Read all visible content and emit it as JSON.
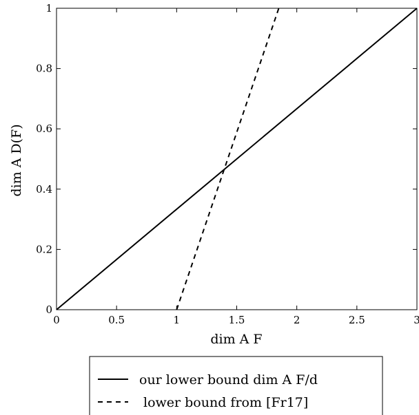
{
  "chart_data": {
    "type": "line",
    "title": "",
    "xlabel": "dim A F",
    "ylabel": "dim A D(F)",
    "xlim": [
      0,
      3
    ],
    "ylim": [
      0,
      1
    ],
    "x_ticks": [
      "0",
      "0.5",
      "1",
      "1.5",
      "2",
      "2.5",
      "3"
    ],
    "y_ticks": [
      "0",
      "0.2",
      "0.4",
      "0.6",
      "0.8",
      "1"
    ],
    "grid": false,
    "legend_position": "below",
    "series": [
      {
        "name": "our lower bound dim A F/d",
        "style": "solid",
        "color": "#000000",
        "x": [
          0,
          3
        ],
        "y": [
          0,
          1
        ]
      },
      {
        "name": "lower bound from [Fr17]",
        "style": "dashed",
        "color": "#000000",
        "x": [
          1,
          1.85
        ],
        "y": [
          0,
          1
        ]
      }
    ]
  }
}
